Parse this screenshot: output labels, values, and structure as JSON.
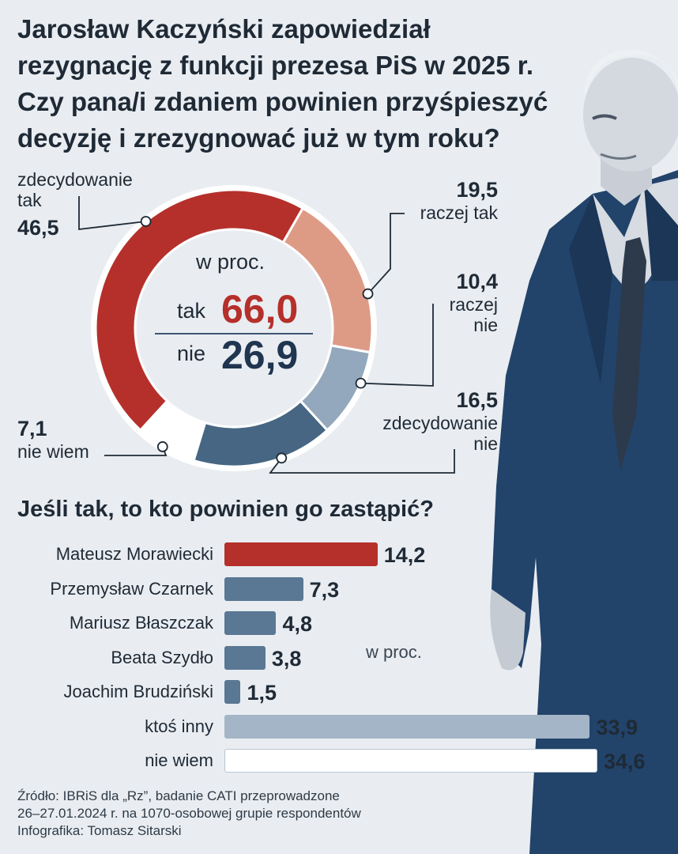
{
  "title": "Jarosław Kaczyński zapowiedział rezygnację z funkcji prezesa PiS w 2025 r. Czy pana/i zdaniem powinien przyśpieszyć decyzję i zrezygnować już w tym roku?",
  "subtitle": "Jeśli tak, to kto powinien go zastąpić?",
  "source": {
    "line1": "Źródło: IBRiS dla „Rz”, badanie CATI przeprowadzone",
    "line2": "26–27.01.2024 r. na 1070-osobowej grupie respondentów",
    "line3": "Infografika: Tomasz Sitarski"
  },
  "colors": {
    "red": "#b5302b",
    "pink": "#dd9b86",
    "light_blue": "#93a8bc",
    "dark_blue": "#466683",
    "mid_blue": "#5a7894",
    "gray_blue": "#a3b5c7",
    "white": "#ffffff",
    "text": "#1f2a36",
    "background": "#e9edf1"
  },
  "chart_data": [
    {
      "type": "pie",
      "variant": "donut",
      "slices": [
        {
          "label_line1": "zdecydowanie",
          "label_line2": "tak",
          "value": 46.5,
          "value_text": "46,5",
          "color": "#b5302b"
        },
        {
          "label_line1": "raczej tak",
          "value": 19.5,
          "value_text": "19,5",
          "color": "#dd9b86"
        },
        {
          "label_line1": "raczej",
          "label_line2": "nie",
          "value": 10.4,
          "value_text": "10,4",
          "color": "#93a8bc"
        },
        {
          "label_line1": "zdecydowanie",
          "label_line2": "nie",
          "value": 16.5,
          "value_text": "16,5",
          "color": "#466683"
        },
        {
          "label_line1": "nie wiem",
          "value": 7.1,
          "value_text": "7,1",
          "color": "#ffffff"
        }
      ],
      "center": {
        "unit": "w proc.",
        "yes_label": "tak",
        "yes_value": "66,0",
        "no_label": "nie",
        "no_value": "26,9"
      }
    },
    {
      "type": "bar",
      "orientation": "horizontal",
      "unit": "w proc.",
      "categories": [
        "Mateusz Morawiecki",
        "Przemysław Czarnek",
        "Mariusz Błaszczak",
        "Beata Szydło",
        "Joachim Brudziński",
        "ktoś inny",
        "nie wiem"
      ],
      "values": [
        14.2,
        7.3,
        4.8,
        3.8,
        1.5,
        33.9,
        34.6
      ],
      "value_texts": [
        "14,2",
        "7,3",
        "4,8",
        "3,8",
        "1,5",
        "33,9",
        "34,6"
      ],
      "colors": [
        "#b5302b",
        "#5a7894",
        "#5a7894",
        "#5a7894",
        "#5a7894",
        "#a3b5c7",
        "#ffffff"
      ]
    }
  ]
}
